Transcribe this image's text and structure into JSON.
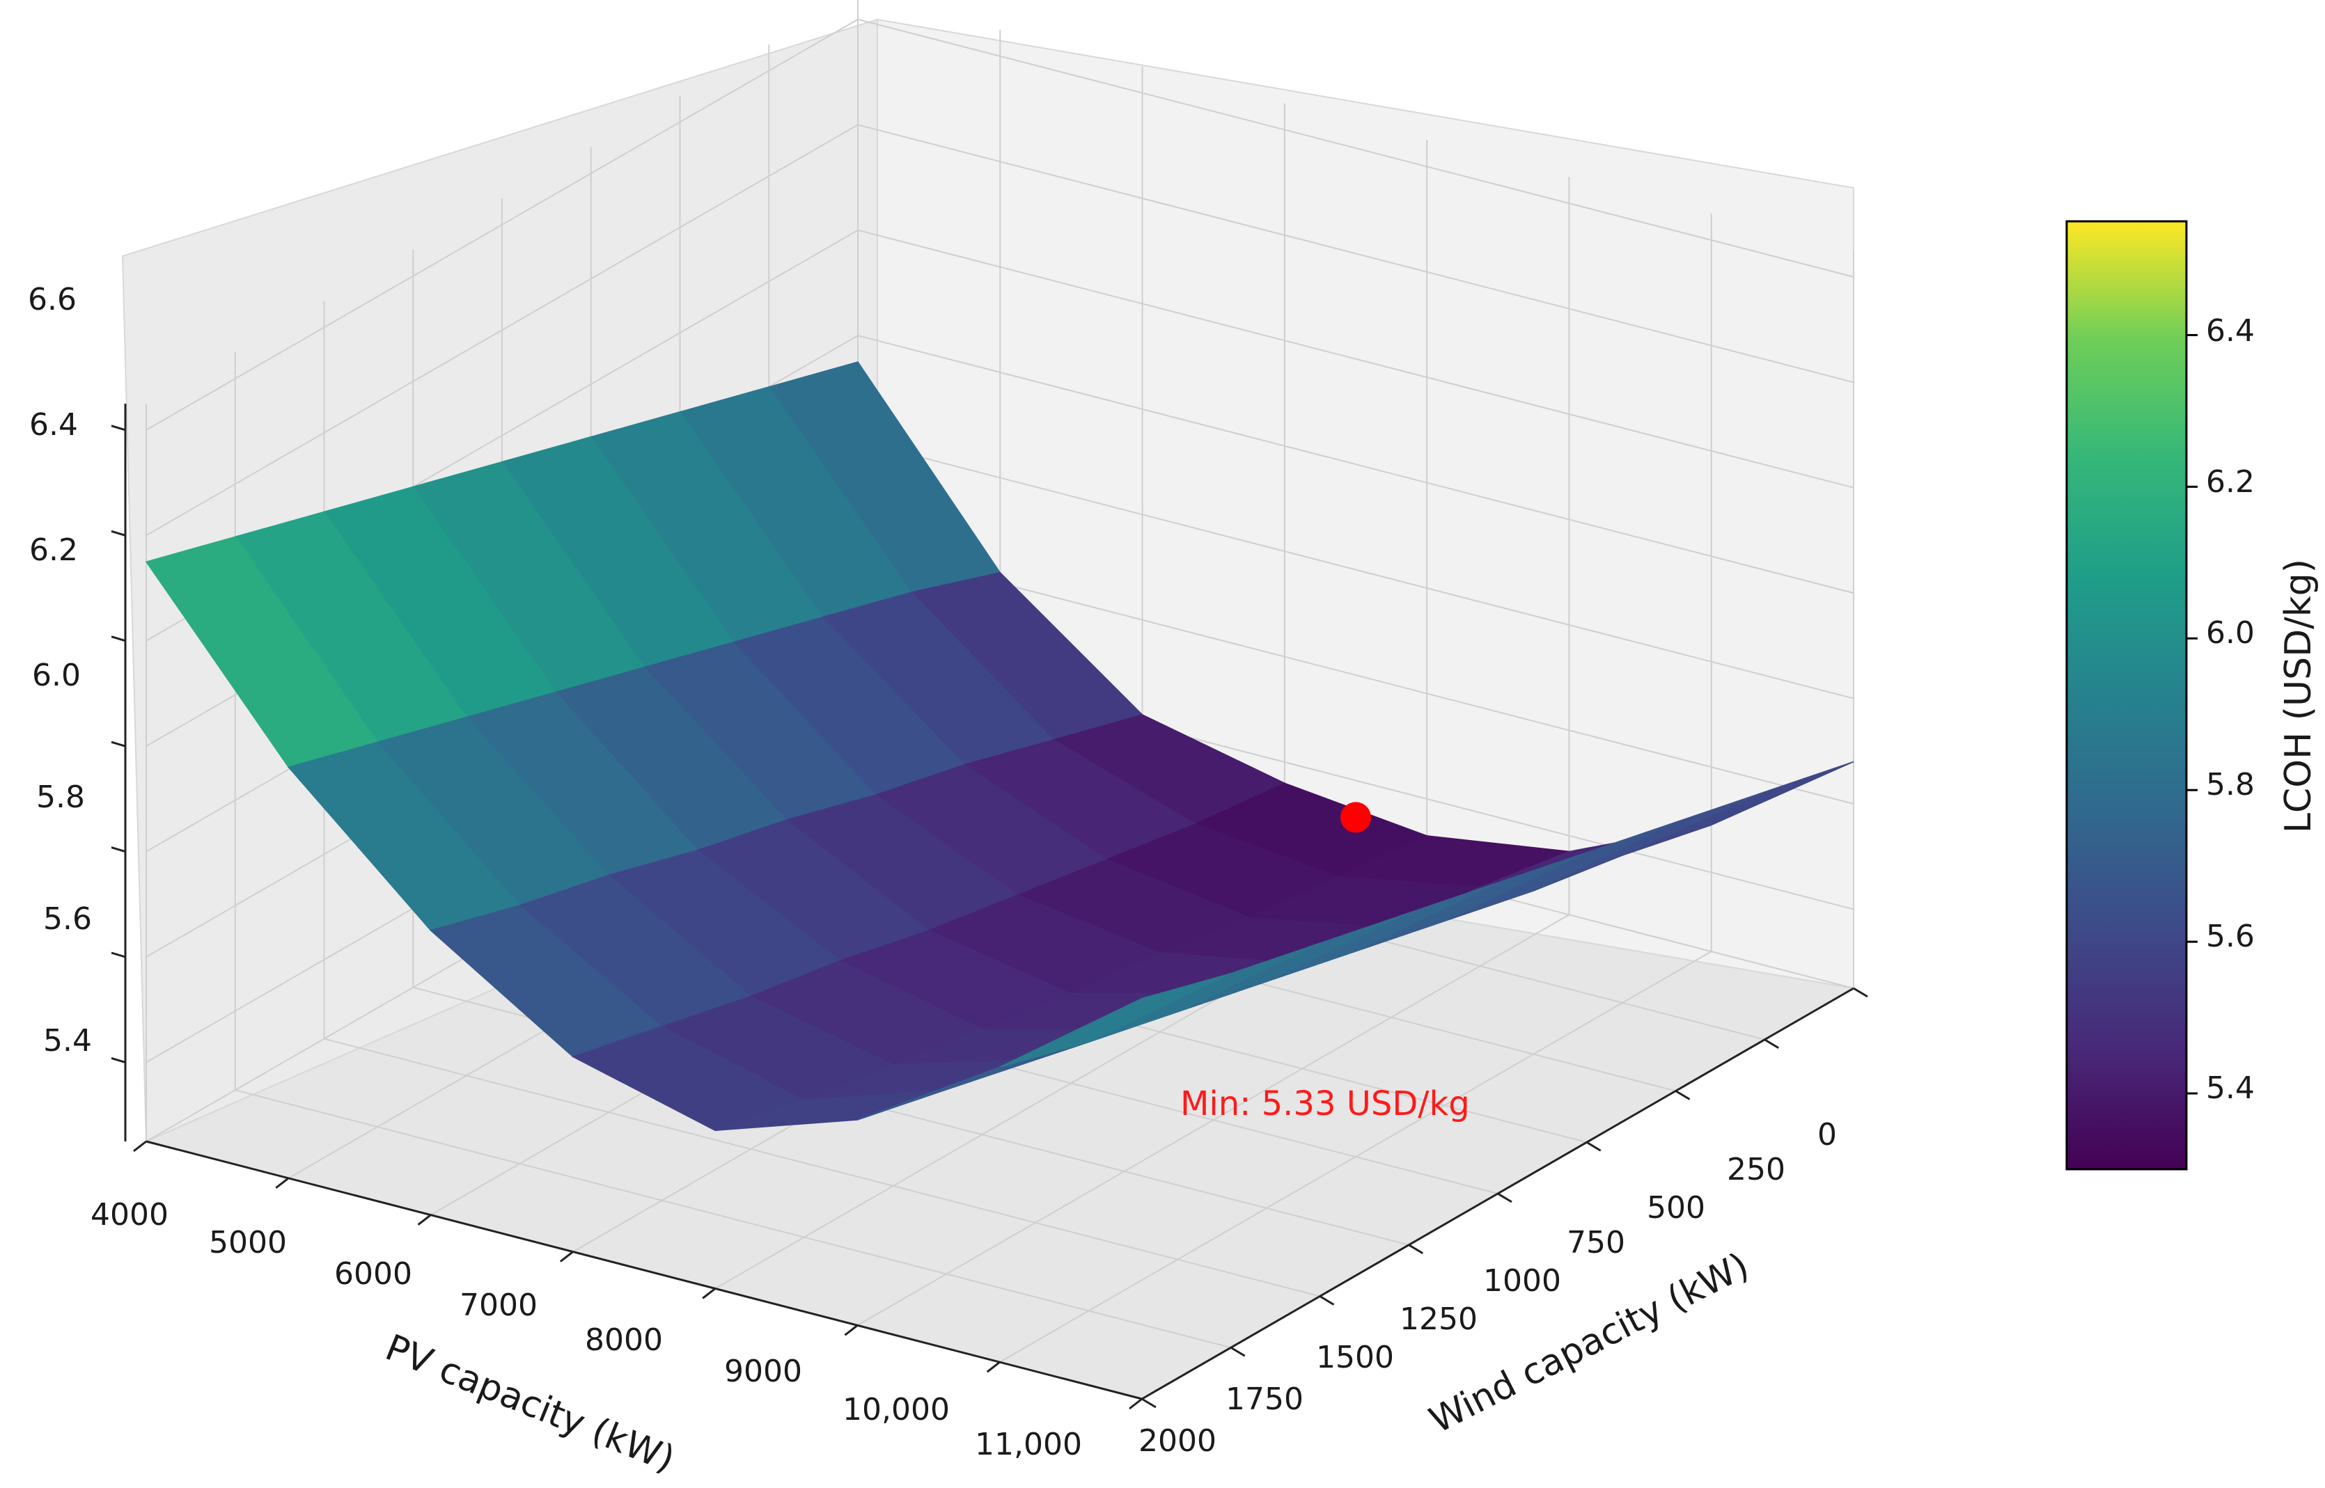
{
  "chart_data": {
    "type": "surface",
    "x_axis": {
      "label": "PV capacity (kW)",
      "ticks": [
        "4000",
        "5000",
        "6000",
        "7000",
        "8000",
        "9000",
        "10,000",
        "11,000"
      ],
      "values": [
        4000,
        5000,
        6000,
        7000,
        8000,
        9000,
        10000,
        11000
      ],
      "range": [
        4000,
        11000
      ]
    },
    "y_axis": {
      "label": "Wind capacity (kW)",
      "ticks": [
        "0",
        "250",
        "500",
        "750",
        "1000",
        "1250",
        "1500",
        "1750",
        "2000"
      ],
      "values": [
        0,
        250,
        500,
        750,
        1000,
        1250,
        1500,
        1750,
        2000
      ],
      "range": [
        0,
        2000
      ]
    },
    "z_axis": {
      "label": "",
      "ticks": [
        "5.4",
        "5.6",
        "5.8",
        "6.0",
        "6.2",
        "6.4",
        "6.6"
      ],
      "values": [
        5.4,
        5.6,
        5.8,
        6.0,
        6.2,
        6.4,
        6.6
      ],
      "range": [
        5.25,
        6.65
      ]
    },
    "colorbar": {
      "label": "LCOH (USD/kg)",
      "ticks": [
        "5.4",
        "5.6",
        "5.8",
        "6.0",
        "6.2",
        "6.4"
      ],
      "values": [
        5.4,
        5.6,
        5.8,
        6.0,
        6.2,
        6.4
      ],
      "range": [
        5.3,
        6.55
      ],
      "colormap": "viridis"
    },
    "minimum": {
      "pv_kW": 7500,
      "wind_kW": 0,
      "lcoh": 5.33,
      "label": "Min: 5.33 USD/kg",
      "color": "#ff0000"
    },
    "surface": {
      "pv_kW": [
        4000,
        5000,
        6000,
        7000,
        8000,
        9000,
        10000,
        11000
      ],
      "wind_kW": [
        0,
        250,
        500,
        750,
        1000,
        1250,
        1500,
        1750,
        2000
      ],
      "lcoh": [
        [
          5.95,
          5.62,
          5.42,
          5.36,
          5.33,
          5.37,
          5.49,
          5.68
        ],
        [
          6.0,
          5.68,
          5.47,
          5.38,
          5.35,
          5.4,
          5.53,
          5.72
        ],
        [
          6.05,
          5.73,
          5.52,
          5.41,
          5.37,
          5.42,
          5.56,
          5.76
        ],
        [
          6.1,
          5.78,
          5.56,
          5.44,
          5.4,
          5.45,
          5.6,
          5.8
        ],
        [
          6.15,
          5.83,
          5.61,
          5.47,
          5.42,
          5.49,
          5.64,
          5.84
        ],
        [
          6.2,
          5.88,
          5.65,
          5.51,
          5.45,
          5.52,
          5.68,
          5.88
        ],
        [
          6.25,
          5.93,
          5.7,
          5.54,
          5.48,
          5.56,
          5.72,
          5.92
        ],
        [
          6.3,
          5.98,
          5.74,
          5.58,
          5.51,
          5.6,
          5.76,
          5.96
        ],
        [
          6.35,
          6.03,
          5.79,
          5.62,
          5.55,
          5.64,
          5.81,
          6.01
        ]
      ]
    },
    "grid": true
  }
}
